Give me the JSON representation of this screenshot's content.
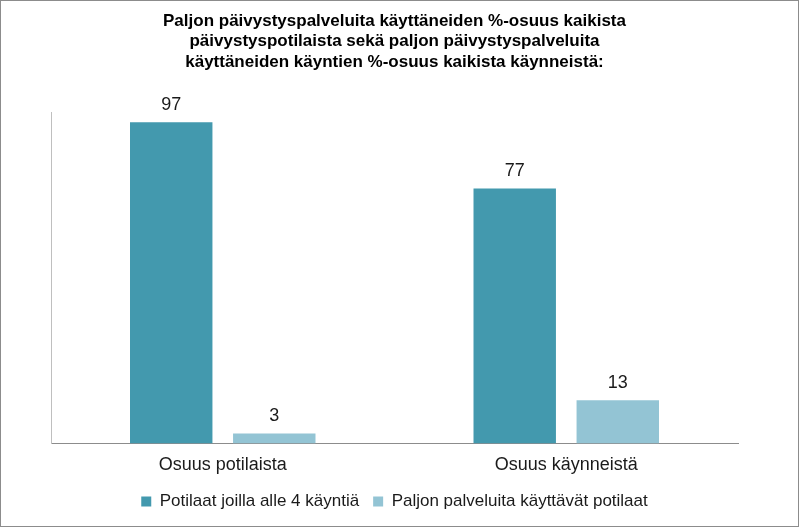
{
  "chart_data": {
    "type": "bar",
    "title": [
      "Paljon päivystyspalveluita käyttäneiden %-osuus kaikista",
      "päivystyspotilaista sekä paljon päivystyspalveluita",
      "käyttäneiden käyntien %-osuus kaikista käynneistä:"
    ],
    "categories": [
      "Osuus potilaista",
      "Osuus käynneistä"
    ],
    "series": [
      {
        "name": "Potilaat joilla alle 4 käyntiä",
        "color": "#4399ae",
        "values": [
          97,
          77
        ]
      },
      {
        "name": "Paljon palveluita käyttävät potilaat",
        "color": "#93c4d4",
        "values": [
          3,
          13
        ]
      }
    ],
    "ylim": [
      0,
      100
    ],
    "grid": false,
    "legend": "bottom",
    "data_labels": true,
    "tick_labels": "x"
  }
}
